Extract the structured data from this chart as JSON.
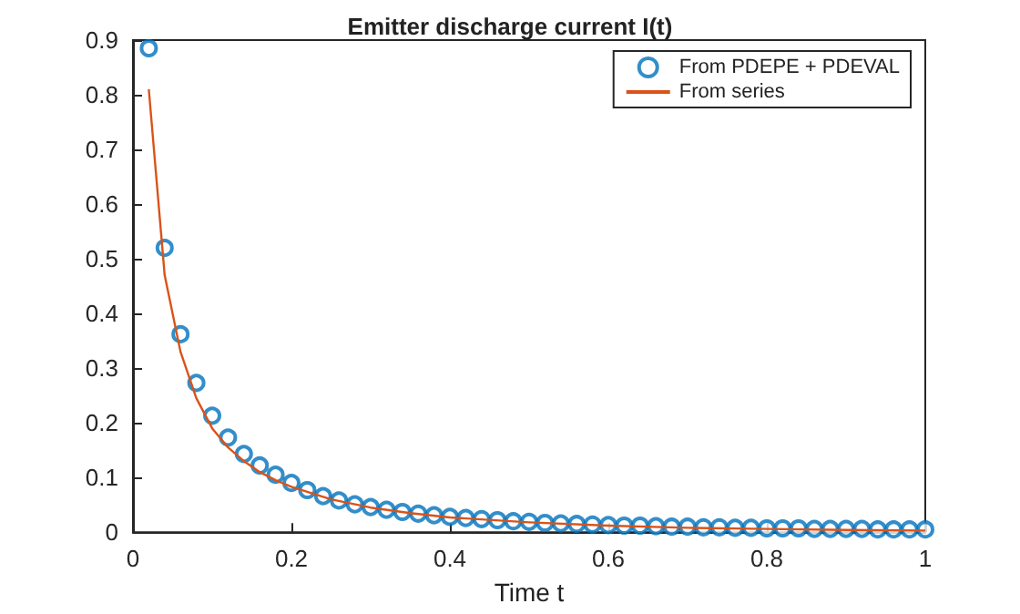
{
  "chart_data": {
    "type": "scatter",
    "title": "Emitter discharge current I(t)",
    "xlabel": "Time t",
    "xlim": [
      0,
      1
    ],
    "xticks": [
      0,
      0.2,
      0.4,
      0.6,
      0.8,
      1
    ],
    "ylim": [
      0,
      0.9
    ],
    "yticks": [
      0,
      0.1,
      0.2,
      0.3,
      0.4,
      0.5,
      0.6,
      0.7,
      0.8,
      0.9
    ],
    "grid": false,
    "legend": "top right",
    "series": [
      {
        "name": "From PDEPE + PDEVAL",
        "marker": "circle",
        "color": "#0072bd",
        "x": [
          0.02,
          0.04,
          0.06,
          0.08,
          0.1,
          0.12,
          0.14,
          0.16,
          0.18,
          0.2,
          0.22,
          0.24,
          0.26,
          0.28,
          0.3,
          0.32,
          0.34,
          0.36,
          0.38,
          0.4,
          0.42,
          0.44,
          0.46,
          0.48,
          0.5,
          0.52,
          0.54,
          0.56,
          0.58,
          0.6,
          0.62,
          0.64,
          0.66,
          0.68,
          0.7,
          0.72,
          0.74,
          0.76,
          0.78,
          0.8,
          0.82,
          0.84,
          0.86,
          0.88,
          0.9,
          0.92,
          0.94,
          0.96,
          0.98,
          1
        ],
        "values": [
          0.885,
          0.52,
          0.362,
          0.273,
          0.213,
          0.173,
          0.143,
          0.122,
          0.105,
          0.09,
          0.077,
          0.066,
          0.058,
          0.051,
          0.046,
          0.041,
          0.037,
          0.034,
          0.031,
          0.028,
          0.026,
          0.024,
          0.022,
          0.02,
          0.019,
          0.017,
          0.016,
          0.015,
          0.014,
          0.013,
          0.012,
          0.012,
          0.011,
          0.01,
          0.01,
          0.009,
          0.009,
          0.008,
          0.008,
          0.007,
          0.007,
          0.007,
          0.006,
          0.006,
          0.006,
          0.006,
          0.005,
          0.005,
          0.005,
          0.005
        ]
      },
      {
        "name": "From series",
        "type": "line",
        "marker": "none",
        "line_style": "solid",
        "color": "#d95319",
        "x": [
          0.02,
          0.04,
          0.06,
          0.08,
          0.1,
          0.12,
          0.14,
          0.16,
          0.18,
          0.2,
          0.25,
          0.3,
          0.35,
          0.4,
          0.5,
          0.6,
          0.7,
          0.8,
          0.9,
          1
        ],
        "values": [
          0.81,
          0.47,
          0.33,
          0.245,
          0.19,
          0.155,
          0.13,
          0.11,
          0.095,
          0.083,
          0.06,
          0.045,
          0.035,
          0.027,
          0.018,
          0.012,
          0.008,
          0.006,
          0.004,
          0.003
        ]
      }
    ]
  }
}
